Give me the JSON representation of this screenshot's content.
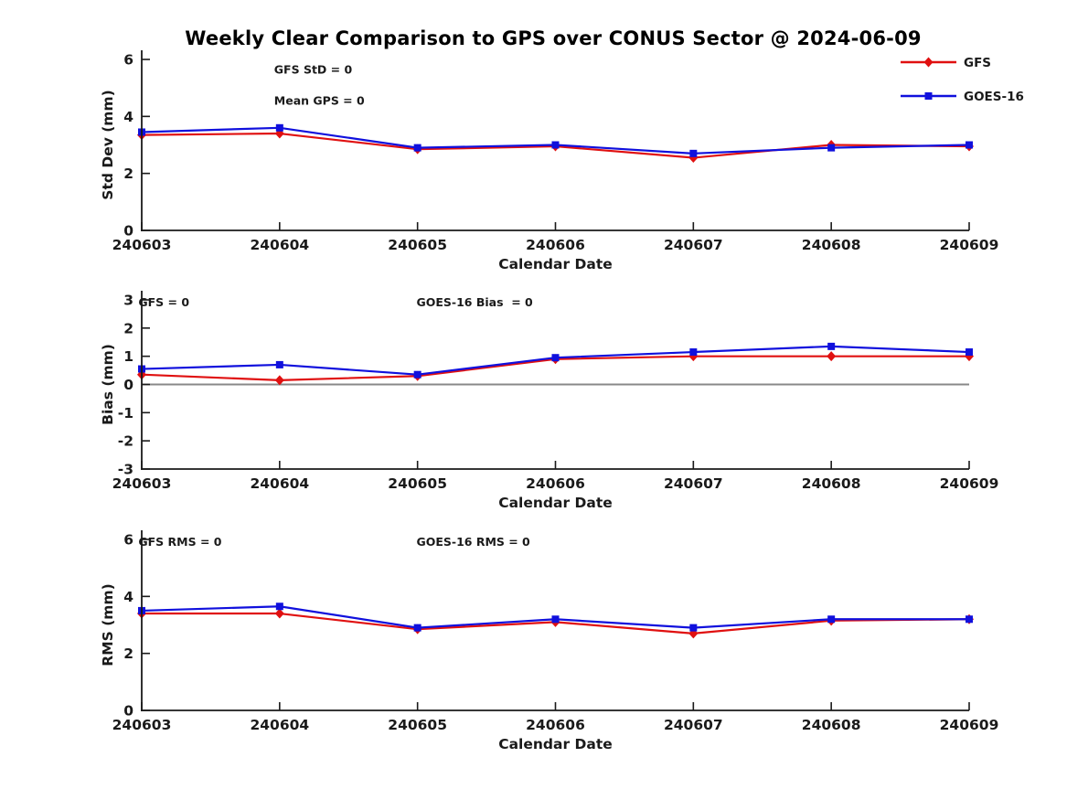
{
  "page": {
    "title": "Weekly Clear Comparison to GPS over CONUS Sector @ 2024-06-09"
  },
  "colors": {
    "gfs_red": "#e01010",
    "goes_blue": "#1010dd",
    "axis_black": "#1a1a1a",
    "zero_line_gray": "#888888"
  },
  "legend": {
    "position": "top-right-of-first-subplot",
    "entries": [
      {
        "label": "GFS",
        "color": "#e01010",
        "marker": "diamond"
      },
      {
        "label": "GOES-16",
        "color": "#1010dd",
        "marker": "square"
      }
    ]
  },
  "chart_data": [
    {
      "type": "line",
      "name": "std-dev",
      "ylabel": "Std Dev (mm)",
      "xlabel": "Calendar Date",
      "categories": [
        "240603",
        "240604",
        "240605",
        "240606",
        "240607",
        "240608",
        "240609"
      ],
      "ylim": [
        0,
        6
      ],
      "yticks": [
        0,
        2,
        4,
        6
      ],
      "grid": false,
      "zero_line": false,
      "annotations": [
        {
          "text": "GFS StD = 0",
          "fx": 0.16,
          "fy": 0.03
        },
        {
          "text": "Mean GPS = 0",
          "fx": 0.16,
          "fy": 0.21
        }
      ],
      "series": [
        {
          "name": "GFS",
          "color": "#e01010",
          "marker": "diamond",
          "values": [
            3.35,
            3.4,
            2.85,
            2.95,
            2.55,
            3.0,
            2.95
          ]
        },
        {
          "name": "GOES-16",
          "color": "#1010dd",
          "marker": "square",
          "values": [
            3.45,
            3.6,
            2.9,
            3.0,
            2.7,
            2.9,
            3.0
          ]
        }
      ]
    },
    {
      "type": "line",
      "name": "bias",
      "ylabel": "Bias (mm)",
      "xlabel": "Calendar Date",
      "categories": [
        "240603",
        "240604",
        "240605",
        "240606",
        "240607",
        "240608",
        "240609"
      ],
      "ylim": [
        -3,
        3
      ],
      "yticks": [
        3,
        2,
        1,
        0,
        -1,
        -2,
        -3
      ],
      "grid": false,
      "zero_line": true,
      "annotations": [
        {
          "text": "GFS = 0",
          "fx": -0.004,
          "fy": -0.015
        },
        {
          "text": "GOES-16 Bias  = 0",
          "fx": 0.332,
          "fy": -0.015
        }
      ],
      "series": [
        {
          "name": "GFS",
          "color": "#e01010",
          "marker": "diamond",
          "values": [
            0.35,
            0.15,
            0.3,
            0.9,
            1.0,
            1.0,
            1.0
          ]
        },
        {
          "name": "GOES-16",
          "color": "#1010dd",
          "marker": "square",
          "values": [
            0.55,
            0.7,
            0.35,
            0.95,
            1.15,
            1.35,
            1.15
          ]
        }
      ]
    },
    {
      "type": "line",
      "name": "rms",
      "ylabel": "RMS (mm)",
      "xlabel": "Calendar Date",
      "categories": [
        "240603",
        "240604",
        "240605",
        "240606",
        "240607",
        "240608",
        "240609"
      ],
      "ylim": [
        0,
        6
      ],
      "yticks": [
        0,
        2,
        4,
        6
      ],
      "grid": false,
      "zero_line": false,
      "annotations": [
        {
          "text": "GFS RMS = 0",
          "fx": -0.004,
          "fy": -0.015
        },
        {
          "text": "GOES-16 RMS = 0",
          "fx": 0.332,
          "fy": -0.015
        }
      ],
      "series": [
        {
          "name": "GFS",
          "color": "#e01010",
          "marker": "diamond",
          "values": [
            3.4,
            3.4,
            2.85,
            3.1,
            2.7,
            3.15,
            3.2
          ]
        },
        {
          "name": "GOES-16",
          "color": "#1010dd",
          "marker": "square",
          "values": [
            3.5,
            3.65,
            2.9,
            3.2,
            2.9,
            3.2,
            3.2
          ]
        }
      ]
    }
  ]
}
